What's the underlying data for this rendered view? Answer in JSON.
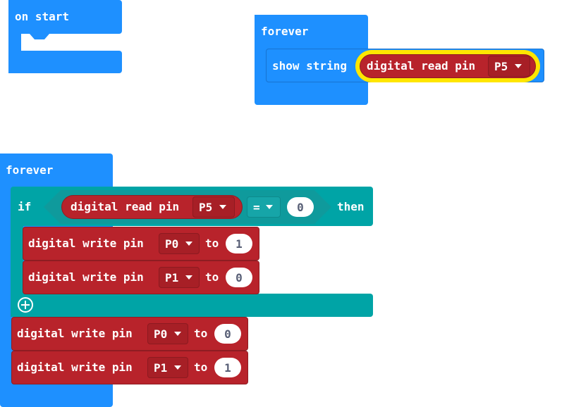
{
  "on_start": {
    "label": "on start"
  },
  "forever_top": {
    "label": "forever",
    "show_string": {
      "label": "show string",
      "reporter": {
        "label": "digital read pin",
        "pin": "P5"
      }
    }
  },
  "forever_bottom": {
    "label": "forever",
    "if_block": {
      "if_label": "if",
      "then_label": "then",
      "condition": {
        "reporter": {
          "label": "digital read pin",
          "pin": "P5"
        },
        "operator": "=",
        "value": "0"
      },
      "body": [
        {
          "label": "digital write pin",
          "pin": "P0",
          "to_label": "to",
          "value": "1"
        },
        {
          "label": "digital write pin",
          "pin": "P1",
          "to_label": "to",
          "value": "0"
        }
      ]
    },
    "after": [
      {
        "label": "digital write pin",
        "pin": "P0",
        "to_label": "to",
        "value": "0"
      },
      {
        "label": "digital write pin",
        "pin": "P1",
        "to_label": "to",
        "value": "1"
      }
    ]
  },
  "colors": {
    "loops_blue": "#1e90ff",
    "logic_teal": "#00a4a6",
    "pins_red": "#b8232b",
    "highlight_yellow": "#ffe600"
  }
}
